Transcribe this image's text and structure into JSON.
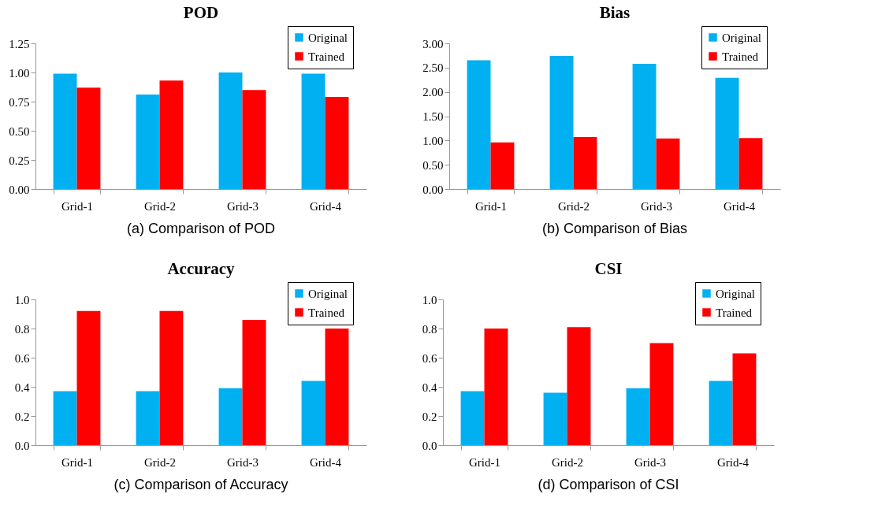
{
  "chart_data": [
    {
      "type": "bar",
      "title": "POD",
      "categories": [
        "Grid-1",
        "Grid-2",
        "Grid-3",
        "Grid-4"
      ],
      "series": [
        {
          "name": "Original",
          "color": "#00b0f0",
          "values": [
            0.99,
            0.81,
            1.0,
            0.99
          ]
        },
        {
          "name": "Trained",
          "color": "#ff0000",
          "values": [
            0.87,
            0.93,
            0.85,
            0.79
          ]
        }
      ],
      "ylim": [
        0,
        1.25
      ],
      "yticks": [
        {
          "value": 0,
          "label": "0.00"
        },
        {
          "value": 0.25,
          "label": "0.25"
        },
        {
          "value": 0.5,
          "label": "0.50"
        },
        {
          "value": 0.75,
          "label": "0.75"
        },
        {
          "value": 1,
          "label": "1.00"
        },
        {
          "value": 1.25,
          "label": "1.25"
        }
      ],
      "grid": false,
      "legend": "top right",
      "annotations": [
        "(a) Comparison of POD"
      ]
    },
    {
      "type": "bar",
      "title": "Bias",
      "categories": [
        "Grid-1",
        "Grid-2",
        "Grid-3",
        "Grid-4"
      ],
      "series": [
        {
          "name": "Original",
          "color": "#00b0f0",
          "values": [
            2.65,
            2.74,
            2.58,
            2.29
          ]
        },
        {
          "name": "Trained",
          "color": "#ff0000",
          "values": [
            0.96,
            1.07,
            1.04,
            1.05
          ]
        }
      ],
      "ylim": [
        0,
        3
      ],
      "yticks": [
        {
          "value": 0,
          "label": "0.00"
        },
        {
          "value": 0.5,
          "label": "0.50"
        },
        {
          "value": 1,
          "label": "1.00"
        },
        {
          "value": 1.5,
          "label": "1.50"
        },
        {
          "value": 2,
          "label": "2.00"
        },
        {
          "value": 2.5,
          "label": "2.50"
        },
        {
          "value": 3,
          "label": "3.00"
        }
      ],
      "grid": false,
      "legend": "top right",
      "annotations": [
        "(b) Comparison of Bias"
      ]
    },
    {
      "type": "bar",
      "title": "Accuracy",
      "categories": [
        "Grid-1",
        "Grid-2",
        "Grid-3",
        "Grid-4"
      ],
      "series": [
        {
          "name": "Original",
          "color": "#00b0f0",
          "values": [
            0.37,
            0.37,
            0.39,
            0.44
          ]
        },
        {
          "name": "Trained",
          "color": "#ff0000",
          "values": [
            0.92,
            0.92,
            0.86,
            0.8
          ]
        }
      ],
      "ylim": [
        0,
        1
      ],
      "yticks": [
        {
          "value": 0,
          "label": "0.0"
        },
        0.2,
        0.4,
        0.6,
        0.8,
        {
          "value": 1,
          "label": "1.0"
        }
      ],
      "grid": false,
      "legend": "top right",
      "annotations": [
        "(c) Comparison of Accuracy"
      ]
    },
    {
      "type": "bar",
      "title": "CSI",
      "categories": [
        "Grid-1",
        "Grid-2",
        "Grid-3",
        "Grid-4"
      ],
      "series": [
        {
          "name": "Original",
          "color": "#00b0f0",
          "values": [
            0.37,
            0.36,
            0.39,
            0.44
          ]
        },
        {
          "name": "Trained",
          "color": "#ff0000",
          "values": [
            0.8,
            0.81,
            0.7,
            0.63
          ]
        }
      ],
      "ylim": [
        0,
        1
      ],
      "yticks": [
        {
          "value": 0,
          "label": "0.0"
        },
        0.2,
        0.4,
        0.6,
        0.8,
        {
          "value": 1,
          "label": "1.0"
        }
      ],
      "grid": false,
      "legend": "top right",
      "annotations": [
        "(d) Comparison of CSI"
      ]
    }
  ]
}
